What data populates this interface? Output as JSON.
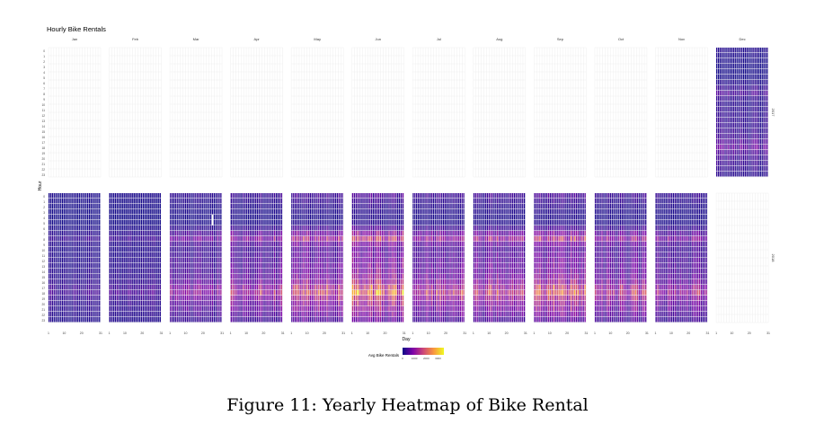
{
  "chart_data": {
    "type": "heatmap",
    "title": "Hourly Bike Rentals",
    "xlabel": "Day",
    "ylabel": "Hour",
    "months": [
      "Jan",
      "Feb",
      "Mar",
      "Apr",
      "May",
      "Jun",
      "Jul",
      "Aug",
      "Sep",
      "Oct",
      "Nov",
      "Dec"
    ],
    "facet_rows": [
      "2017",
      "2018"
    ],
    "hour_ticks": [
      "0",
      "1",
      "2",
      "3",
      "4",
      "5",
      "6",
      "7",
      "8",
      "9",
      "10",
      "11",
      "12",
      "13",
      "14",
      "15",
      "16",
      "17",
      "18",
      "19",
      "20",
      "21",
      "22",
      "23"
    ],
    "day_ticks": [
      1,
      10,
      20,
      31
    ],
    "day_tick_labels": [
      "1",
      "10",
      "20",
      "31"
    ],
    "legend": {
      "title": "Avg Bike Rentals",
      "ticks": [
        0,
        1000,
        2000,
        3000
      ],
      "tick_labels": [
        "0",
        "1000",
        "2000",
        "3000"
      ],
      "colors": [
        "#0d0887",
        "#7e03a8",
        "#cc4778",
        "#f89540",
        "#f0f921"
      ],
      "range": [
        0,
        3500
      ]
    },
    "days_in_month": [
      31,
      28,
      31,
      30,
      31,
      30,
      31,
      31,
      30,
      31,
      30,
      31
    ],
    "monthly_peak_rentals": {
      "2017": {
        "Dec": 750
      },
      "2018": {
        "Jan": 500,
        "Feb": 550,
        "Mar": 1200,
        "Apr": 1700,
        "May": 2300,
        "Jun": 2800,
        "Jul": 2100,
        "Aug": 2200,
        "Sep": 2600,
        "Oct": 1900,
        "Nov": 1500
      }
    },
    "hourly_profile": [
      0.22,
      0.16,
      0.12,
      0.08,
      0.06,
      0.08,
      0.22,
      0.45,
      0.72,
      0.4,
      0.3,
      0.34,
      0.38,
      0.4,
      0.42,
      0.48,
      0.58,
      0.82,
      1.0,
      0.74,
      0.58,
      0.52,
      0.42,
      0.3
    ],
    "missing_cell": {
      "facet": "2018",
      "month": "Mar",
      "day": 26,
      "hours": [
        4,
        5
      ]
    }
  },
  "caption": "Figure 11: Yearly Heatmap of Bike Rental"
}
